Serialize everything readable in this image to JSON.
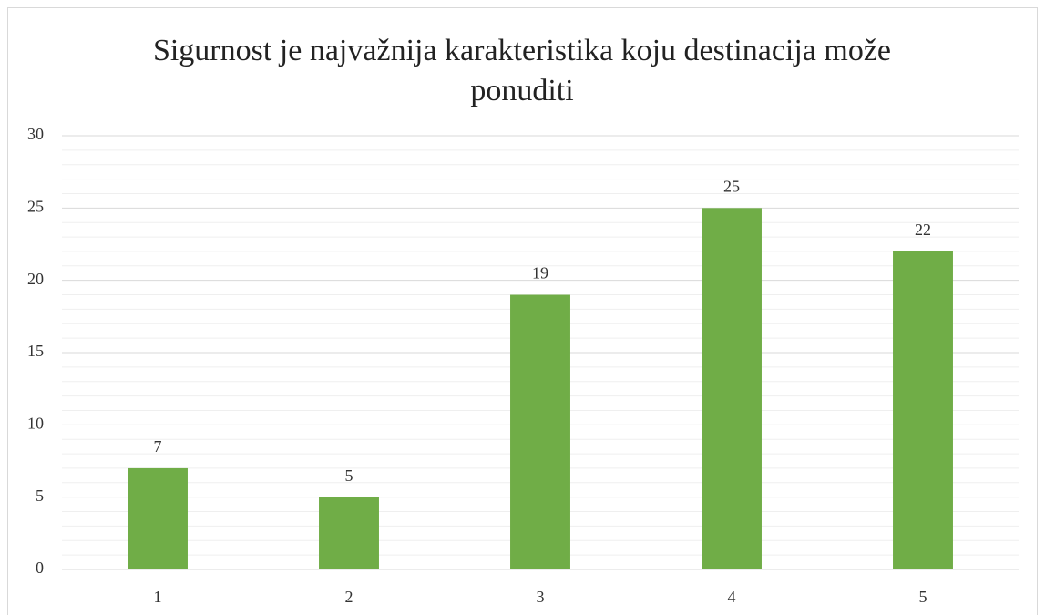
{
  "chart_data": {
    "type": "bar",
    "title": "Sigurnost je najvažnija karakteristika koju destinacija može ponuditi",
    "categories": [
      "1",
      "2",
      "3",
      "4",
      "5"
    ],
    "values": [
      7,
      5,
      19,
      25,
      22
    ],
    "color": "#70ad47",
    "ylim": [
      0,
      30
    ],
    "yticks": [
      0,
      5,
      10,
      15,
      20,
      25,
      30
    ],
    "grid": true,
    "minor_grid": true,
    "data_labels": true
  }
}
